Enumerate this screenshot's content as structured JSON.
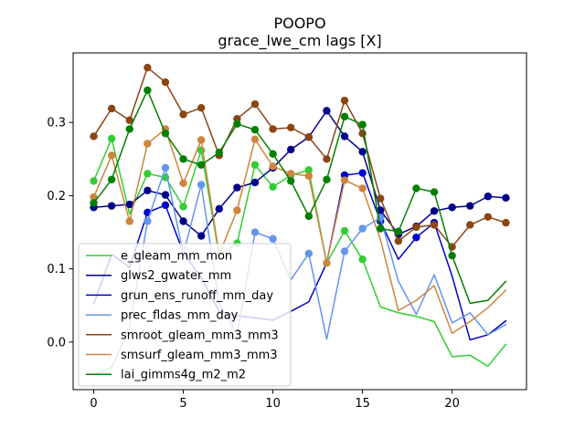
{
  "chart_data": {
    "type": "line",
    "title": "POOPO",
    "subtitle": "grace_lwe_cm lags [X]",
    "xlabel": "",
    "ylabel": "",
    "xlim": [
      -1.15,
      24.15
    ],
    "ylim": [
      -0.065,
      0.395
    ],
    "x_ticks": [
      0,
      5,
      10,
      15,
      20
    ],
    "y_ticks": [
      0.0,
      0.1,
      0.2,
      0.3
    ],
    "y_tick_labels": [
      "0.0",
      "0.1",
      "0.2",
      "0.3"
    ],
    "legend_position": "lower-left",
    "marker_note": "filled circle markers drawn only at lags with significant correlation",
    "series": [
      {
        "name": "e_gleam_mm_mon",
        "color": "#32cd32",
        "values": [
          0.22,
          0.278,
          0.175,
          0.23,
          0.225,
          0.185,
          0.262,
          0.118,
          0.135,
          0.242,
          0.212,
          0.228,
          0.235,
          0.108,
          0.152,
          0.113,
          0.048,
          0.04,
          0.035,
          0.028,
          -0.02,
          -0.018,
          -0.033,
          -0.003
        ],
        "markers": [
          true,
          true,
          false,
          true,
          true,
          true,
          true,
          false,
          true,
          true,
          true,
          true,
          true,
          false,
          true,
          true,
          false,
          false,
          false,
          false,
          false,
          false,
          false,
          false
        ]
      },
      {
        "name": "glws2_gwater_mm",
        "color": "#00008b",
        "values": [
          0.184,
          0.186,
          0.188,
          0.207,
          0.201,
          0.165,
          0.145,
          0.182,
          0.211,
          0.218,
          0.238,
          0.263,
          0.28,
          0.316,
          0.281,
          0.26,
          0.18,
          0.147,
          0.158,
          0.179,
          0.184,
          0.186,
          0.199,
          0.197
        ],
        "markers": [
          true,
          true,
          true,
          true,
          true,
          true,
          true,
          true,
          true,
          true,
          true,
          true,
          true,
          true,
          true,
          true,
          true,
          true,
          true,
          true,
          true,
          true,
          true,
          true
        ]
      },
      {
        "name": "grun_ens_runoff_mm_day",
        "color": "#0000cd",
        "values": [
          0.052,
          0.12,
          0.102,
          0.177,
          0.187,
          0.122,
          0.088,
          0.042,
          0.036,
          0.033,
          0.03,
          0.042,
          0.055,
          0.108,
          0.228,
          0.231,
          0.165,
          0.113,
          0.143,
          0.163,
          0.09,
          0.003,
          0.01,
          0.029
        ],
        "markers": [
          false,
          false,
          false,
          true,
          true,
          false,
          false,
          false,
          false,
          false,
          false,
          false,
          false,
          false,
          true,
          true,
          true,
          false,
          true,
          true,
          false,
          false,
          false,
          false
        ]
      },
      {
        "name": "prec_fldas_mm_day",
        "color": "#6495ed",
        "values": [
          -0.045,
          -0.035,
          0.02,
          0.165,
          0.238,
          0.12,
          0.215,
          0.053,
          0.01,
          0.15,
          0.141,
          0.085,
          0.121,
          0.004,
          0.124,
          0.155,
          0.17,
          0.083,
          0.038,
          0.092,
          0.026,
          0.04,
          0.01,
          0.024
        ],
        "markers": [
          false,
          false,
          false,
          true,
          true,
          false,
          true,
          false,
          false,
          true,
          true,
          false,
          true,
          false,
          true,
          true,
          true,
          false,
          false,
          false,
          false,
          false,
          false,
          false
        ]
      },
      {
        "name": "smroot_gleam_mm3_mm3",
        "color": "#8b4513",
        "values": [
          0.281,
          0.319,
          0.303,
          0.375,
          0.355,
          0.311,
          0.32,
          0.255,
          0.305,
          0.325,
          0.291,
          0.293,
          0.28,
          0.25,
          0.33,
          0.285,
          0.196,
          0.138,
          0.157,
          0.16,
          0.13,
          0.16,
          0.171,
          0.163
        ],
        "markers": [
          true,
          true,
          true,
          true,
          true,
          true,
          true,
          true,
          true,
          true,
          true,
          true,
          true,
          true,
          true,
          true,
          true,
          true,
          true,
          true,
          true,
          true,
          true,
          true
        ]
      },
      {
        "name": "smsurf_gleam_mm3_mm3",
        "color": "#cd853f",
        "values": [
          0.198,
          0.255,
          0.165,
          0.271,
          0.291,
          0.217,
          0.276,
          0.12,
          0.18,
          0.277,
          0.24,
          0.23,
          0.227,
          0.108,
          0.221,
          0.21,
          0.14,
          0.043,
          0.057,
          0.077,
          0.012,
          0.028,
          0.047,
          0.071
        ],
        "markers": [
          true,
          true,
          true,
          true,
          true,
          true,
          true,
          false,
          true,
          true,
          true,
          true,
          true,
          true,
          true,
          true,
          false,
          false,
          false,
          false,
          false,
          false,
          false,
          false
        ]
      },
      {
        "name": "lai_gimms4g_m2_m2",
        "color": "#008000",
        "values": [
          0.19,
          0.222,
          0.291,
          0.344,
          0.285,
          0.25,
          0.242,
          0.259,
          0.298,
          0.29,
          0.257,
          0.22,
          0.172,
          0.222,
          0.308,
          0.297,
          0.155,
          0.151,
          0.21,
          0.205,
          0.118,
          0.053,
          0.057,
          0.083
        ],
        "markers": [
          true,
          true,
          true,
          true,
          true,
          true,
          true,
          true,
          true,
          true,
          true,
          true,
          true,
          true,
          true,
          true,
          true,
          true,
          true,
          true,
          true,
          false,
          false,
          false
        ]
      }
    ]
  }
}
